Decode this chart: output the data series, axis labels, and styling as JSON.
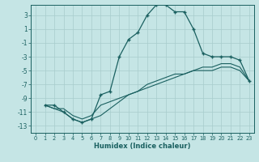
{
  "xlabel": "Humidex (Indice chaleur)",
  "xlim": [
    -0.5,
    23.5
  ],
  "ylim": [
    -14,
    4.5
  ],
  "yticks": [
    3,
    1,
    -1,
    -3,
    -5,
    -7,
    -9,
    -11,
    -13
  ],
  "xticks": [
    0,
    1,
    2,
    3,
    4,
    5,
    6,
    7,
    8,
    9,
    10,
    11,
    12,
    13,
    14,
    15,
    16,
    17,
    18,
    19,
    20,
    21,
    22,
    23
  ],
  "bg_color": "#c5e5e5",
  "line_color": "#1a6060",
  "grid_color": "#a8cccc",
  "series": [
    {
      "x": [
        1,
        2,
        3,
        4,
        5,
        6,
        7,
        8,
        9,
        10,
        11,
        12,
        13,
        14,
        15,
        16,
        17,
        18,
        19,
        20,
        21,
        22,
        23
      ],
      "y": [
        -10,
        -10,
        -11,
        -12,
        -12.5,
        -12,
        -8.5,
        -8,
        -3,
        -0.5,
        0.5,
        3,
        4.5,
        4.5,
        3.5,
        3.5,
        1,
        -2.5,
        -3,
        -3,
        -3,
        -3.5,
        -6.5
      ],
      "marker": "+",
      "markersize": 3.5,
      "ls": "-",
      "lw": 0.9
    },
    {
      "x": [
        1,
        2,
        3,
        4,
        5,
        6,
        7,
        8,
        9,
        10,
        11,
        12,
        13,
        14,
        15,
        16,
        17,
        18,
        19,
        20,
        21,
        22,
        23
      ],
      "y": [
        -10,
        -10.5,
        -10.5,
        -11.5,
        -12,
        -11.5,
        -10,
        -9.5,
        -9,
        -8.5,
        -8,
        -7.5,
        -7,
        -6.5,
        -6,
        -5.5,
        -5,
        -4.5,
        -4.5,
        -4,
        -4,
        -4.5,
        -6.5
      ],
      "marker": null,
      "markersize": 0,
      "ls": "-",
      "lw": 0.8
    },
    {
      "x": [
        1,
        2,
        3,
        4,
        5,
        6,
        7,
        8,
        9,
        10,
        11,
        12,
        13,
        14,
        15,
        16,
        17,
        18,
        19,
        20,
        21,
        22,
        23
      ],
      "y": [
        -10,
        -10.5,
        -11,
        -12,
        -12.5,
        -12,
        -11.5,
        -10.5,
        -9.5,
        -8.5,
        -8,
        -7,
        -6.5,
        -6,
        -5.5,
        -5.5,
        -5,
        -5,
        -5,
        -4.5,
        -4.5,
        -5,
        -6.5
      ],
      "marker": null,
      "markersize": 0,
      "ls": "-",
      "lw": 0.8
    }
  ]
}
